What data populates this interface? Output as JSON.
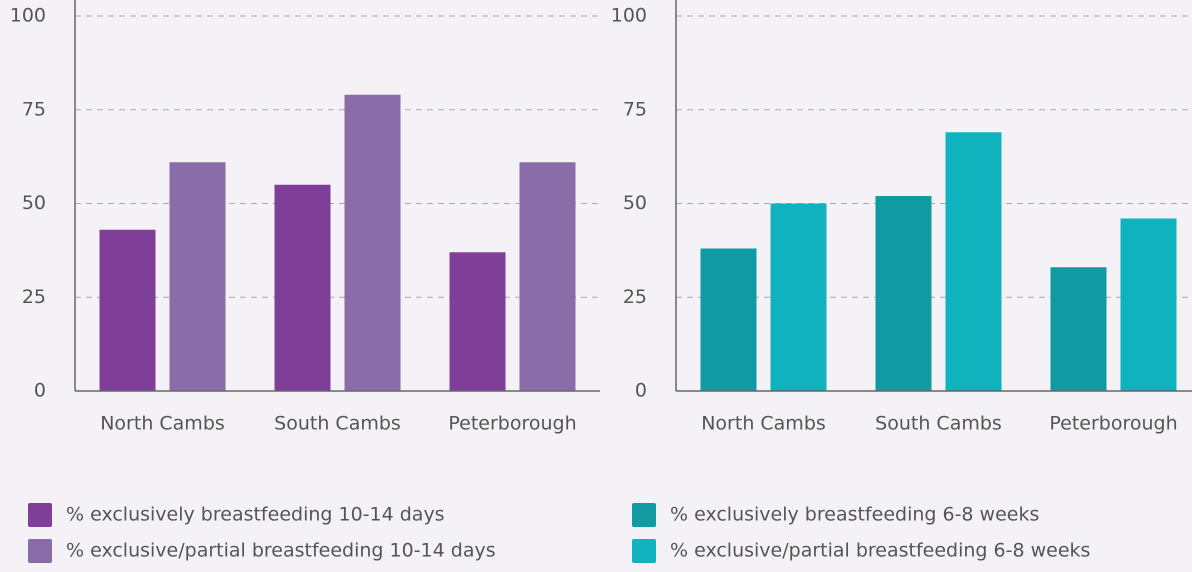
{
  "chart_data": [
    {
      "type": "bar",
      "categories": [
        "North Cambs",
        "South Cambs",
        "Peterborough"
      ],
      "series": [
        {
          "name": "% exclusively breastfeeding 10-14 days",
          "color": "#7f3f98",
          "values": [
            43,
            55,
            37
          ]
        },
        {
          "name": "% exclusive/partial breastfeeding 10-14 days",
          "color": "#8a6ca8",
          "values": [
            61,
            79,
            61
          ]
        }
      ],
      "ylim": [
        0,
        100
      ],
      "yticks": [
        0,
        25,
        50,
        75,
        100
      ],
      "grid": true,
      "legend": "bottom"
    },
    {
      "type": "bar",
      "categories": [
        "North Cambs",
        "South Cambs",
        "Peterborough"
      ],
      "series": [
        {
          "name": "% exclusively breastfeeding 6-8 weeks",
          "color": "#0f9ba1",
          "values": [
            38,
            52,
            33
          ]
        },
        {
          "name": "% exclusive/partial breastfeeding 6-8 weeks",
          "color": "#10b3bd",
          "values": [
            50,
            69,
            46
          ]
        }
      ],
      "ylim": [
        0,
        100
      ],
      "yticks": [
        0,
        25,
        50,
        75,
        100
      ],
      "grid": true,
      "legend": "bottom"
    }
  ]
}
